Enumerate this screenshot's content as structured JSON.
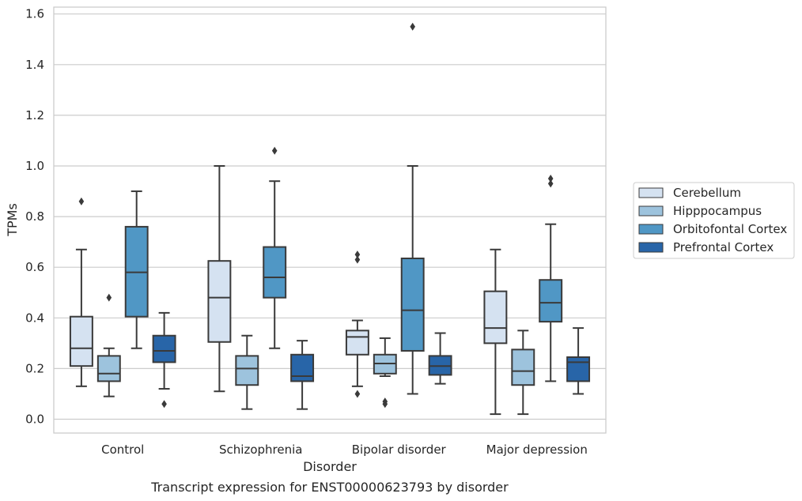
{
  "chart_data": {
    "type": "box",
    "caption": "Transcript expression for ENST00000623793 by disorder",
    "xlabel": "Disorder",
    "ylabel": "TPMs",
    "ylim": [
      -0.055,
      1.63
    ],
    "yticks": [
      0.0,
      0.2,
      0.4,
      0.6,
      0.8,
      1.0,
      1.2,
      1.4,
      1.6
    ],
    "ytick_labels": [
      "0.0",
      "0.2",
      "0.4",
      "0.6",
      "0.8",
      "1.0",
      "1.2",
      "1.4",
      "1.6"
    ],
    "grid": "horizontal",
    "legend_position": "right",
    "categories": [
      "Control",
      "Schizophrenia",
      "Bipolar disorder",
      "Major depression"
    ],
    "series": [
      {
        "name": "Cerebellum",
        "color": "#d5e2f1",
        "boxes": [
          {
            "whislo": 0.13,
            "q1": 0.21,
            "med": 0.28,
            "q3": 0.405,
            "whishi": 0.67,
            "fliers": [
              0.86
            ]
          },
          {
            "whislo": 0.11,
            "q1": 0.305,
            "med": 0.48,
            "q3": 0.625,
            "whishi": 1.0,
            "fliers": []
          },
          {
            "whislo": 0.13,
            "q1": 0.255,
            "med": 0.325,
            "q3": 0.35,
            "whishi": 0.39,
            "fliers": [
              0.1,
              0.63,
              0.65
            ]
          },
          {
            "whislo": 0.02,
            "q1": 0.3,
            "med": 0.36,
            "q3": 0.505,
            "whishi": 0.67,
            "fliers": []
          }
        ]
      },
      {
        "name": "Hipppocampus",
        "color": "#9dc3dd",
        "boxes": [
          {
            "whislo": 0.09,
            "q1": 0.15,
            "med": 0.18,
            "q3": 0.25,
            "whishi": 0.28,
            "fliers": [
              0.48
            ]
          },
          {
            "whislo": 0.04,
            "q1": 0.135,
            "med": 0.2,
            "q3": 0.25,
            "whishi": 0.33,
            "fliers": []
          },
          {
            "whislo": 0.17,
            "q1": 0.18,
            "med": 0.22,
            "q3": 0.255,
            "whishi": 0.32,
            "fliers": [
              0.06,
              0.07
            ]
          },
          {
            "whislo": 0.02,
            "q1": 0.135,
            "med": 0.19,
            "q3": 0.275,
            "whishi": 0.35,
            "fliers": []
          }
        ]
      },
      {
        "name": "Orbitofontal Cortex",
        "color": "#5097c5",
        "boxes": [
          {
            "whislo": 0.28,
            "q1": 0.405,
            "med": 0.58,
            "q3": 0.76,
            "whishi": 0.9,
            "fliers": []
          },
          {
            "whislo": 0.28,
            "q1": 0.48,
            "med": 0.56,
            "q3": 0.68,
            "whishi": 0.94,
            "fliers": [
              1.06
            ]
          },
          {
            "whislo": 0.1,
            "q1": 0.27,
            "med": 0.43,
            "q3": 0.635,
            "whishi": 1.0,
            "fliers": [
              1.55
            ]
          },
          {
            "whislo": 0.15,
            "q1": 0.385,
            "med": 0.46,
            "q3": 0.55,
            "whishi": 0.77,
            "fliers": [
              0.93,
              0.95
            ]
          }
        ]
      },
      {
        "name": "Prefrontal Cortex",
        "color": "#2865a8",
        "boxes": [
          {
            "whislo": 0.12,
            "q1": 0.225,
            "med": 0.27,
            "q3": 0.33,
            "whishi": 0.42,
            "fliers": [
              0.06
            ]
          },
          {
            "whislo": 0.04,
            "q1": 0.15,
            "med": 0.17,
            "q3": 0.255,
            "whishi": 0.31,
            "fliers": []
          },
          {
            "whislo": 0.14,
            "q1": 0.175,
            "med": 0.21,
            "q3": 0.25,
            "whishi": 0.34,
            "fliers": []
          },
          {
            "whislo": 0.1,
            "q1": 0.15,
            "med": 0.225,
            "q3": 0.245,
            "whishi": 0.36,
            "fliers": []
          }
        ]
      }
    ]
  }
}
